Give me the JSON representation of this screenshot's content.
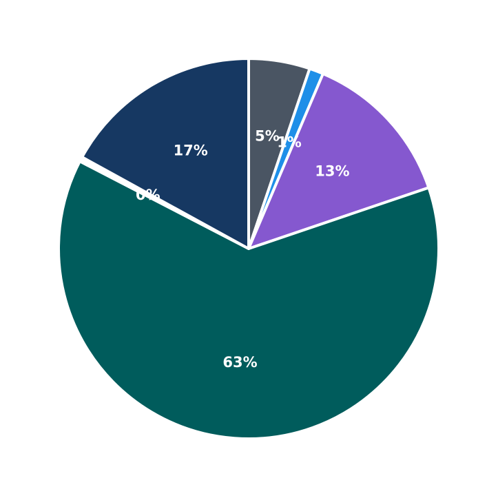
{
  "chart_data": {
    "type": "pie",
    "title": "",
    "slices": [
      {
        "label": "5%",
        "value": 5.2,
        "color": "#4a5563"
      },
      {
        "label": "1%",
        "value": 1.2,
        "color": "#1e8fe8"
      },
      {
        "label": "13%",
        "value": 13.4,
        "color": "#8558cf"
      },
      {
        "label": "63%",
        "value": 62.8,
        "color": "#005c5c"
      },
      {
        "label": "0%",
        "value": 0.4,
        "color": "#ffffff"
      },
      {
        "label": "17%",
        "value": 17.0,
        "color": "#163862"
      }
    ],
    "start_angle_deg": 90,
    "direction": "clockwise",
    "slice_edge_color": "#ffffff",
    "label_color": "#ffffff"
  }
}
